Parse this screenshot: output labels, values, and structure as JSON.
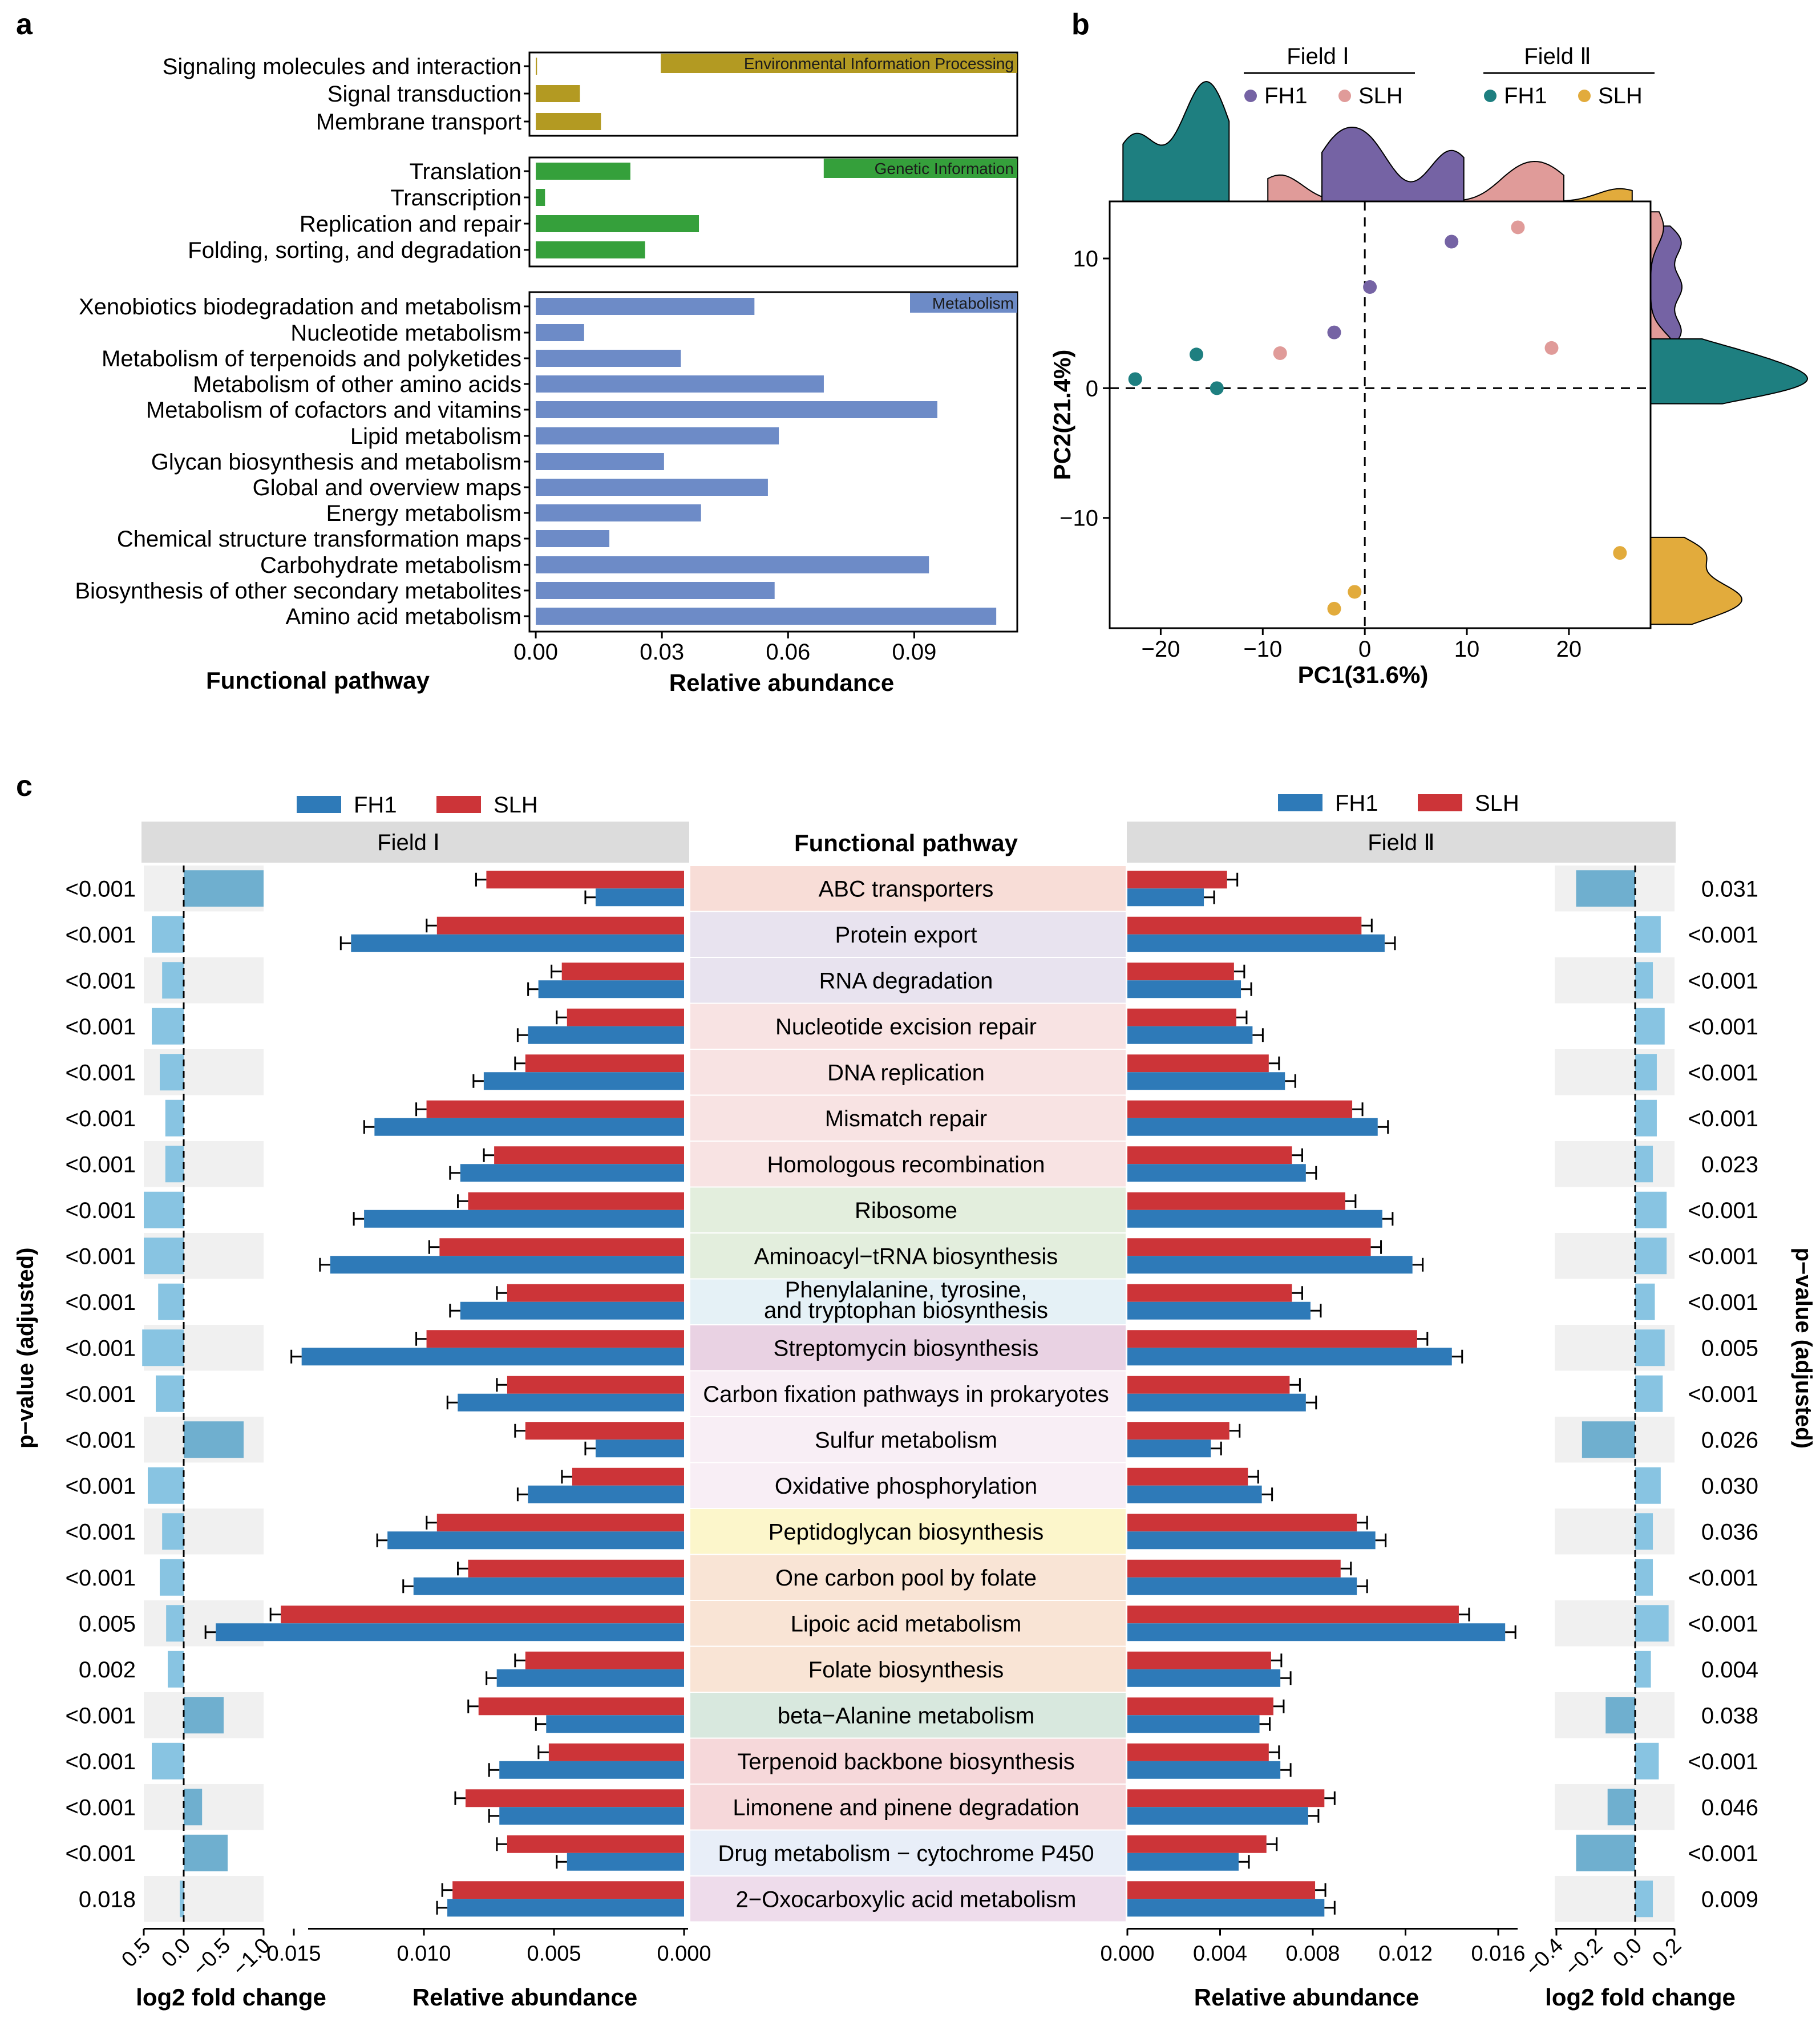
{
  "panel_labels": {
    "a": "a",
    "b": "b",
    "c": "c"
  },
  "colors": {
    "env": "#B39A22",
    "gen": "#35A03B",
    "met": "#6D8BC7",
    "FH1_I": "#7563A4",
    "SLH_I": "#E09B99",
    "FH1_II": "#1E7F80",
    "SLH_II": "#E2AB3C",
    "FH1": "#2E7AB8",
    "SLH": "#CC3438",
    "fc": "#88C4E2",
    "fc_dark": "#6FAFCF"
  },
  "chart_data": [
    {
      "id": "a",
      "type": "bar",
      "orientation": "horizontal",
      "xlabel": "Relative abundance",
      "ylabel": "Functional pathway",
      "xlim": [
        -0.0015,
        0.1145
      ],
      "xticks": [
        "0.00",
        "0.03",
        "0.06",
        "0.09"
      ],
      "groups": [
        {
          "label": "Environmental Information Processing",
          "color_key": "env",
          "categories": [
            "Signaling molecules and interaction",
            "Signal transduction",
            "Membrane transport"
          ],
          "values": [
            0.0003,
            0.0105,
            0.0155
          ]
        },
        {
          "label": "Genetic Information",
          "color_key": "gen",
          "categories": [
            "Translation",
            "Transcription",
            "Replication and repair",
            "Folding, sorting, and degradation"
          ],
          "values": [
            0.0225,
            0.0022,
            0.0388,
            0.026
          ]
        },
        {
          "label": "Metabolism",
          "color_key": "met",
          "categories": [
            "Xenobiotics biodegradation and metabolism",
            "Nucleotide metabolism",
            "Metabolism of terpenoids and polyketides",
            "Metabolism of other amino acids",
            "Metabolism of cofactors and vitamins",
            "Lipid metabolism",
            "Glycan biosynthesis and metabolism",
            "Global and overview maps",
            "Energy metabolism",
            "Chemical structure transformation maps",
            "Carbohydrate metabolism",
            "Biosynthesis of other secondary metabolites",
            "Amino acid metabolism"
          ],
          "values": [
            0.052,
            0.0115,
            0.0345,
            0.0685,
            0.0955,
            0.0578,
            0.0305,
            0.0552,
            0.0393,
            0.0175,
            0.0935,
            0.0568,
            0.1095
          ]
        }
      ]
    },
    {
      "id": "b",
      "type": "scatter",
      "xlabel": "PC1(31.6%)",
      "ylabel": "PC2(21.4%)",
      "xlim": [
        -25,
        28
      ],
      "ylim": [
        -18.5,
        14.4
      ],
      "xticks": [
        -20,
        -10,
        0,
        10,
        20
      ],
      "yticks": [
        10,
        0,
        -10
      ],
      "xtick_labels": [
        "−20",
        "−10",
        "0",
        "10",
        "20"
      ],
      "ytick_labels": [
        "10",
        "0",
        "−10"
      ],
      "legend": {
        "position": "top",
        "groups": [
          {
            "title": "Field Ⅰ",
            "entries": [
              {
                "name": "FH1",
                "color_key": "FH1_I"
              },
              {
                "name": "SLH",
                "color_key": "SLH_I"
              }
            ]
          },
          {
            "title": "Field Ⅱ",
            "entries": [
              {
                "name": "FH1",
                "color_key": "FH1_II"
              },
              {
                "name": "SLH",
                "color_key": "SLH_II"
              }
            ]
          }
        ]
      },
      "series": [
        {
          "name": "Field Ⅰ FH1",
          "color_key": "FH1_I",
          "x": [
            8.5,
            0.5,
            -3.0
          ],
          "y": [
            11.3,
            7.8,
            4.3
          ]
        },
        {
          "name": "Field Ⅰ SLH",
          "color_key": "SLH_I",
          "x": [
            15.0,
            18.3,
            -8.3
          ],
          "y": [
            12.4,
            3.1,
            2.7
          ]
        },
        {
          "name": "Field Ⅱ FH1",
          "color_key": "FH1_II",
          "x": [
            -16.5,
            -22.5,
            -14.5
          ],
          "y": [
            2.6,
            0.7,
            0.0
          ]
        },
        {
          "name": "Field Ⅱ SLH",
          "color_key": "SLH_II",
          "x": [
            25.0,
            -1.0,
            -3.0
          ],
          "y": [
            -12.7,
            -15.7,
            -17.0
          ]
        }
      ]
    },
    {
      "id": "c",
      "type": "bar",
      "orientation": "horizontal",
      "center_header": "Functional pathway",
      "field_labels": [
        "Field Ⅰ",
        "Field Ⅱ"
      ],
      "series_names": [
        "FH1",
        "SLH"
      ],
      "left_p_label": "p−value (adjusted)",
      "right_p_label": "p−value (adjusted)",
      "fc_xlabel": "log2 fold change",
      "ab_xlabel": "Relative abundance",
      "left_fc_ticks": [
        "0.5",
        "0.0",
        "−0.5",
        "−1.0"
      ],
      "left_ab_ticks": [
        "0.015",
        "0.010",
        "0.005",
        "0.000"
      ],
      "right_ab_ticks": [
        "0.000",
        "0.004",
        "0.008",
        "0.012",
        "0.016"
      ],
      "right_fc_ticks": [
        "−0.4",
        "−0.2",
        "0.0",
        "0.2"
      ],
      "pathways": [
        {
          "name": "ABC transporters",
          "band": "#F8DDD7",
          "p1": "<0.001",
          "fc1": -1.0,
          "slh1": 0.0076,
          "fh1_1": 0.0034,
          "p2": "0.031",
          "fc2": -0.3,
          "slh2": 0.0043,
          "fh1_2": 0.0033
        },
        {
          "name": "Protein export",
          "band": "#E8E3EF",
          "p1": "<0.001",
          "fc1": 0.4,
          "slh1": 0.0095,
          "fh1_1": 0.0128,
          "p2": "<0.001",
          "fc2": 0.13,
          "slh2": 0.0101,
          "fh1_2": 0.0111
        },
        {
          "name": "RNA degradation",
          "band": "#E8E3EF",
          "p1": "<0.001",
          "fc1": 0.27,
          "slh1": 0.0047,
          "fh1_1": 0.0056,
          "p2": "<0.001",
          "fc2": 0.09,
          "slh2": 0.0046,
          "fh1_2": 0.0049
        },
        {
          "name": "Nucleotide excision repair",
          "band": "#F8E3E3",
          "p1": "<0.001",
          "fc1": 0.4,
          "slh1": 0.0045,
          "fh1_1": 0.006,
          "p2": "<0.001",
          "fc2": 0.15,
          "slh2": 0.0047,
          "fh1_2": 0.0054
        },
        {
          "name": "DNA replication",
          "band": "#F8E3E3",
          "p1": "<0.001",
          "fc1": 0.3,
          "slh1": 0.0061,
          "fh1_1": 0.0077,
          "p2": "<0.001",
          "fc2": 0.11,
          "slh2": 0.0061,
          "fh1_2": 0.0068
        },
        {
          "name": "Mismatch repair",
          "band": "#F8E3E3",
          "p1": "<0.001",
          "fc1": 0.23,
          "slh1": 0.0099,
          "fh1_1": 0.0119,
          "p2": "<0.001",
          "fc2": 0.11,
          "slh2": 0.0097,
          "fh1_2": 0.0108
        },
        {
          "name": "Homologous recombination",
          "band": "#F8E3E3",
          "p1": "<0.001",
          "fc1": 0.23,
          "slh1": 0.0073,
          "fh1_1": 0.0086,
          "p2": "0.023",
          "fc2": 0.09,
          "slh2": 0.0071,
          "fh1_2": 0.0077
        },
        {
          "name": "Ribosome",
          "band": "#E3EEDD",
          "p1": "<0.001",
          "fc1": 0.5,
          "slh1": 0.0083,
          "fh1_1": 0.0123,
          "p2": "<0.001",
          "fc2": 0.16,
          "slh2": 0.0094,
          "fh1_2": 0.011
        },
        {
          "name": "Aminoacyl−tRNA biosynthesis",
          "band": "#E3EEDD",
          "p1": "<0.001",
          "fc1": 0.5,
          "slh1": 0.0094,
          "fh1_1": 0.0136,
          "p2": "<0.001",
          "fc2": 0.16,
          "slh2": 0.0105,
          "fh1_2": 0.0123
        },
        {
          "name": "Phenylalanine, tyrosine,\nand tryptophan biosynthesis",
          "band": "#E5F1F6",
          "p1": "<0.001",
          "fc1": 0.32,
          "slh1": 0.0068,
          "fh1_1": 0.0086,
          "p2": "<0.001",
          "fc2": 0.1,
          "slh2": 0.0071,
          "fh1_2": 0.0079
        },
        {
          "name": "Streptomycin biosynthesis",
          "band": "#E9D2E3",
          "p1": "<0.001",
          "fc1": 0.52,
          "slh1": 0.0099,
          "fh1_1": 0.0147,
          "p2": "0.005",
          "fc2": 0.15,
          "slh2": 0.0125,
          "fh1_2": 0.014
        },
        {
          "name": "Carbon fixation pathways in prokaryotes",
          "band": "#F8EEF5",
          "p1": "<0.001",
          "fc1": 0.35,
          "slh1": 0.0068,
          "fh1_1": 0.0087,
          "p2": "<0.001",
          "fc2": 0.14,
          "slh2": 0.007,
          "fh1_2": 0.0077
        },
        {
          "name": "Sulfur metabolism",
          "band": "#F8EEF5",
          "p1": "<0.001",
          "fc1": -0.75,
          "slh1": 0.0061,
          "fh1_1": 0.0034,
          "p2": "0.026",
          "fc2": -0.27,
          "slh2": 0.0044,
          "fh1_2": 0.0036
        },
        {
          "name": "Oxidative phosphorylation",
          "band": "#F8EEF5",
          "p1": "<0.001",
          "fc1": 0.45,
          "slh1": 0.0043,
          "fh1_1": 0.006,
          "p2": "0.030",
          "fc2": 0.13,
          "slh2": 0.0052,
          "fh1_2": 0.0058
        },
        {
          "name": "Peptidoglycan biosynthesis",
          "band": "#FCF6CB",
          "p1": "<0.001",
          "fc1": 0.27,
          "slh1": 0.0095,
          "fh1_1": 0.0114,
          "p2": "0.036",
          "fc2": 0.09,
          "slh2": 0.0099,
          "fh1_2": 0.0107
        },
        {
          "name": "One carbon pool by folate",
          "band": "#F9E4D5",
          "p1": "<0.001",
          "fc1": 0.3,
          "slh1": 0.0083,
          "fh1_1": 0.0104,
          "p2": "<0.001",
          "fc2": 0.09,
          "slh2": 0.0092,
          "fh1_2": 0.0099
        },
        {
          "name": "Lipoic acid metabolism",
          "band": "#F9E4D5",
          "p1": "0.005",
          "fc1": 0.22,
          "slh1": 0.0155,
          "fh1_1": 0.018,
          "p2": "<0.001",
          "fc2": 0.17,
          "slh2": 0.0143,
          "fh1_2": 0.0163
        },
        {
          "name": "Folate biosynthesis",
          "band": "#F9E4D5",
          "p1": "0.002",
          "fc1": 0.2,
          "slh1": 0.0061,
          "fh1_1": 0.0072,
          "p2": "0.004",
          "fc2": 0.08,
          "slh2": 0.0062,
          "fh1_2": 0.0066
        },
        {
          "name": "beta−Alanine metabolism",
          "band": "#D8E8DE",
          "p1": "<0.001",
          "fc1": -0.5,
          "slh1": 0.0079,
          "fh1_1": 0.0053,
          "p2": "0.038",
          "fc2": -0.15,
          "slh2": 0.0063,
          "fh1_2": 0.0057
        },
        {
          "name": "Terpenoid backbone biosynthesis",
          "band": "#F6D8DA",
          "p1": "<0.001",
          "fc1": 0.4,
          "slh1": 0.0052,
          "fh1_1": 0.0071,
          "p2": "<0.001",
          "fc2": 0.12,
          "slh2": 0.0061,
          "fh1_2": 0.0066
        },
        {
          "name": "Limonene and pinene degradation",
          "band": "#F6D8DA",
          "p1": "<0.001",
          "fc1": -0.23,
          "slh1": 0.0084,
          "fh1_1": 0.0071,
          "p2": "0.046",
          "fc2": -0.14,
          "slh2": 0.0085,
          "fh1_2": 0.0078
        },
        {
          "name": "Drug metabolism − cytochrome P450",
          "band": "#E8EEF8",
          "p1": "<0.001",
          "fc1": -0.55,
          "slh1": 0.0068,
          "fh1_1": 0.0045,
          "p2": "<0.001",
          "fc2": -0.3,
          "slh2": 0.006,
          "fh1_2": 0.0048
        },
        {
          "name": "2−Oxocarboxylic acid metabolism",
          "band": "#EEDCEB",
          "p1": "0.018",
          "fc1": 0.05,
          "slh1": 0.0089,
          "fh1_1": 0.0091,
          "p2": "0.009",
          "fc2": 0.09,
          "slh2": 0.0081,
          "fh1_2": 0.0085
        }
      ]
    }
  ]
}
